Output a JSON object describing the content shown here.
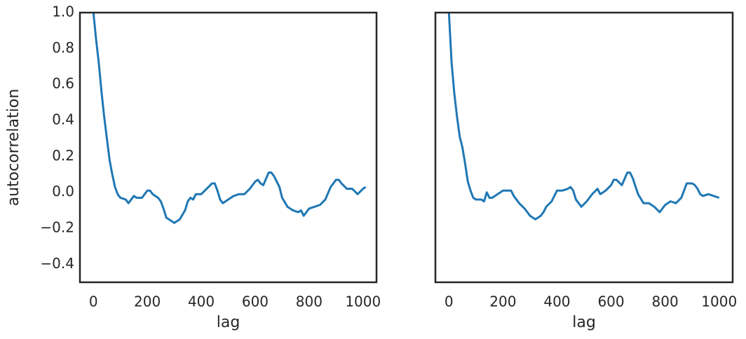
{
  "chart_data": [
    {
      "type": "line",
      "xlabel": "lag",
      "ylabel": "autocorrelation",
      "color": "#1f77b4",
      "xlim": [
        -50,
        1050
      ],
      "ylim": [
        -0.5,
        1.0
      ],
      "xticks": [
        0,
        200,
        400,
        600,
        800,
        1000
      ],
      "yticks": [
        {
          "value": -0.4,
          "label": "−0.4"
        },
        {
          "value": -0.2,
          "label": "−0.2"
        },
        {
          "value": 0,
          "label": "0.0"
        },
        0.2,
        0.4,
        0.6,
        0.8,
        {
          "value": 1.0,
          "label": "1.0"
        }
      ],
      "x": [
        0,
        10,
        20,
        30,
        40,
        50,
        60,
        70,
        80,
        90,
        100,
        120,
        130,
        140,
        150,
        160,
        180,
        200,
        210,
        220,
        240,
        250,
        260,
        270,
        280,
        300,
        320,
        340,
        350,
        360,
        370,
        380,
        400,
        420,
        440,
        450,
        460,
        470,
        480,
        500,
        520,
        540,
        560,
        580,
        600,
        610,
        620,
        630,
        650,
        660,
        670,
        690,
        700,
        720,
        740,
        760,
        770,
        780,
        800,
        820,
        840,
        860,
        880,
        900,
        910,
        920,
        940,
        960,
        980,
        1000,
        1010
      ],
      "values": [
        1.0,
        0.85,
        0.72,
        0.56,
        0.42,
        0.3,
        0.18,
        0.1,
        0.03,
        -0.01,
        -0.03,
        -0.04,
        -0.06,
        -0.04,
        -0.02,
        -0.03,
        -0.03,
        0.01,
        0.01,
        -0.01,
        -0.03,
        -0.05,
        -0.09,
        -0.14,
        -0.15,
        -0.17,
        -0.15,
        -0.1,
        -0.05,
        -0.03,
        -0.04,
        -0.01,
        -0.01,
        0.02,
        0.05,
        0.05,
        0.01,
        -0.04,
        -0.06,
        -0.04,
        -0.02,
        -0.01,
        -0.01,
        0.02,
        0.06,
        0.07,
        0.05,
        0.04,
        0.11,
        0.11,
        0.09,
        0.03,
        -0.03,
        -0.08,
        -0.1,
        -0.11,
        -0.1,
        -0.13,
        -0.09,
        -0.08,
        -0.07,
        -0.04,
        0.03,
        0.07,
        0.07,
        0.05,
        0.02,
        0.02,
        -0.01,
        0.02,
        0.03
      ]
    },
    {
      "type": "line",
      "xlabel": "lag",
      "color": "#1f77b4",
      "xlim": [
        -50,
        1050
      ],
      "ylim": [
        -0.5,
        1.0
      ],
      "xticks": [
        0,
        200,
        400,
        600,
        800,
        1000
      ],
      "x": [
        0,
        10,
        20,
        30,
        40,
        50,
        60,
        70,
        80,
        90,
        100,
        120,
        130,
        140,
        150,
        160,
        180,
        200,
        220,
        230,
        240,
        260,
        280,
        300,
        320,
        340,
        350,
        360,
        380,
        400,
        420,
        440,
        450,
        460,
        470,
        490,
        510,
        530,
        550,
        560,
        580,
        600,
        610,
        620,
        640,
        660,
        670,
        680,
        700,
        720,
        740,
        760,
        780,
        800,
        820,
        840,
        860,
        880,
        900,
        910,
        920,
        930,
        940,
        960,
        980,
        1000
      ],
      "values": [
        1.0,
        0.72,
        0.55,
        0.42,
        0.31,
        0.25,
        0.16,
        0.06,
        0.01,
        -0.03,
        -0.04,
        -0.04,
        -0.05,
        0.0,
        -0.03,
        -0.03,
        -0.01,
        0.01,
        0.01,
        0.01,
        -0.02,
        -0.06,
        -0.09,
        -0.13,
        -0.15,
        -0.13,
        -0.11,
        -0.08,
        -0.05,
        0.01,
        0.01,
        0.02,
        0.03,
        0.01,
        -0.04,
        -0.08,
        -0.05,
        -0.01,
        0.02,
        -0.01,
        0.01,
        0.04,
        0.07,
        0.07,
        0.04,
        0.11,
        0.11,
        0.08,
        -0.01,
        -0.06,
        -0.06,
        -0.08,
        -0.11,
        -0.07,
        -0.05,
        -0.06,
        -0.03,
        0.05,
        0.05,
        0.04,
        0.02,
        -0.01,
        -0.02,
        -0.01,
        -0.02,
        -0.03
      ]
    }
  ]
}
